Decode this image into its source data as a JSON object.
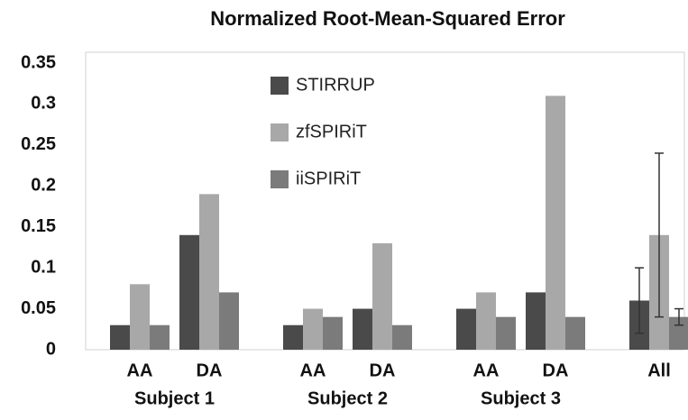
{
  "chart_data": {
    "type": "bar",
    "title": "Normalized Root-Mean-Squared Error",
    "categories": [
      "AA",
      "DA",
      "AA",
      "DA",
      "AA",
      "DA",
      "All"
    ],
    "groups": [
      "Subject 1",
      "Subject 2",
      "Subject 3"
    ],
    "series": [
      {
        "name": "STIRRUP",
        "color": "#4a4a4a",
        "values": [
          0.03,
          0.14,
          0.03,
          0.05,
          0.05,
          0.07,
          0.06
        ],
        "errors": [
          null,
          null,
          null,
          null,
          null,
          null,
          0.04
        ]
      },
      {
        "name": "zfSPIRiT",
        "color": "#a8a8a8",
        "values": [
          0.08,
          0.19,
          0.05,
          0.13,
          0.07,
          0.31,
          0.14
        ],
        "errors": [
          null,
          null,
          null,
          null,
          null,
          null,
          0.1
        ]
      },
      {
        "name": "iiSPIRiT",
        "color": "#7b7b7b",
        "values": [
          0.03,
          0.07,
          0.04,
          0.03,
          0.04,
          0.04,
          0.04
        ],
        "errors": [
          null,
          null,
          null,
          null,
          null,
          null,
          0.01
        ]
      }
    ],
    "ylim": [
      0,
      0.35
    ],
    "yticks": [
      0,
      0.05,
      0.1,
      0.15,
      0.2,
      0.25,
      0.3,
      0.35
    ],
    "grid": false
  }
}
